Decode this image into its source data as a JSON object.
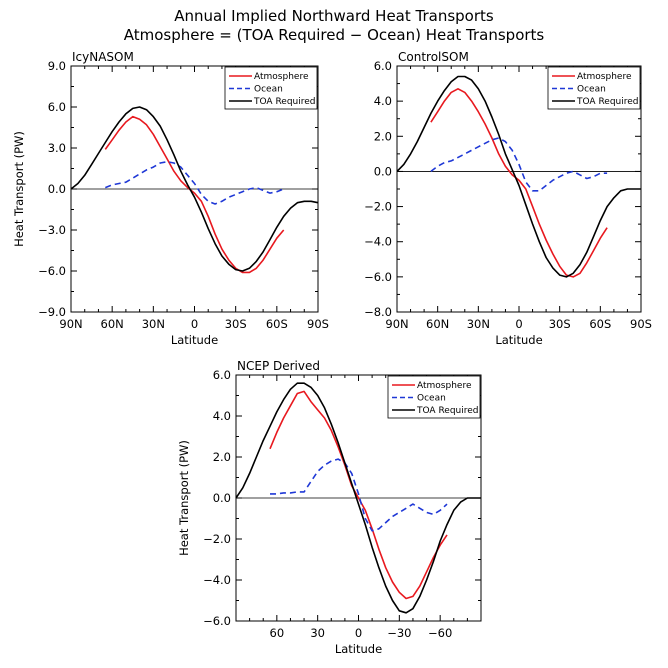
{
  "figure": {
    "title_line1": "Annual Implied Northward Heat Transports",
    "title_line2": "Atmosphere = (TOA Required − Ocean) Heat Transports"
  },
  "chart_data": [
    {
      "type": "line",
      "title": "IcyNASOM",
      "xlabel": "Latitude",
      "ylabel": "Heat Transport (PW)",
      "xlim": [
        90,
        -90
      ],
      "ylim": [
        -9,
        9
      ],
      "x_ticks": [
        90,
        60,
        30,
        0,
        -30,
        -60,
        -90
      ],
      "x_tick_labels": [
        "90N",
        "60N",
        "30N",
        "0",
        "30S",
        "60S",
        "90S"
      ],
      "y_ticks": [
        -9,
        -6,
        -3,
        0,
        3,
        6,
        9
      ],
      "y_tick_labels": [
        "−9.0",
        "−6.0",
        "−3.0",
        "0.0",
        "3.0",
        "6.0",
        "9.0"
      ],
      "legend": [
        "Atmosphere",
        "Ocean",
        "TOA Required"
      ],
      "legend_position": "top-right",
      "series": [
        {
          "name": "Atmosphere",
          "color": "#e8191f",
          "dash": "solid",
          "x": [
            65,
            60,
            55,
            50,
            45,
            40,
            35,
            30,
            25,
            20,
            15,
            10,
            5,
            0,
            -5,
            -10,
            -15,
            -20,
            -25,
            -30,
            -35,
            -40,
            -45,
            -50,
            -55,
            -60,
            -65
          ],
          "y": [
            2.9,
            3.6,
            4.3,
            4.9,
            5.3,
            5.1,
            4.7,
            4.0,
            3.1,
            2.2,
            1.3,
            0.6,
            0.1,
            -0.3,
            -0.9,
            -2.0,
            -3.3,
            -4.4,
            -5.2,
            -5.8,
            -6.1,
            -6.1,
            -5.8,
            -5.2,
            -4.4,
            -3.6,
            -3.0
          ]
        },
        {
          "name": "Ocean",
          "color": "#1f38d6",
          "dash": "dashed",
          "x": [
            65,
            60,
            55,
            50,
            45,
            40,
            35,
            30,
            25,
            20,
            15,
            10,
            5,
            0,
            -5,
            -10,
            -15,
            -20,
            -25,
            -30,
            -35,
            -40,
            -45,
            -50,
            -55,
            -60,
            -65
          ],
          "y": [
            0.1,
            0.3,
            0.4,
            0.5,
            0.8,
            1.1,
            1.4,
            1.6,
            1.9,
            2.0,
            1.9,
            1.6,
            1.0,
            0.4,
            -0.4,
            -0.9,
            -1.1,
            -0.9,
            -0.6,
            -0.4,
            -0.2,
            0.0,
            0.1,
            -0.1,
            -0.3,
            -0.2,
            0.0
          ]
        },
        {
          "name": "TOA Required",
          "color": "#000000",
          "dash": "solid",
          "x": [
            90,
            85,
            80,
            75,
            70,
            65,
            60,
            55,
            50,
            45,
            40,
            35,
            30,
            25,
            20,
            15,
            10,
            5,
            0,
            -5,
            -10,
            -15,
            -20,
            -25,
            -30,
            -35,
            -40,
            -45,
            -50,
            -55,
            -60,
            -65,
            -70,
            -75,
            -80,
            -85,
            -90
          ],
          "y": [
            0.0,
            0.4,
            1.0,
            1.8,
            2.6,
            3.4,
            4.2,
            4.9,
            5.5,
            5.9,
            6.0,
            5.8,
            5.3,
            4.6,
            3.6,
            2.5,
            1.3,
            0.3,
            -0.6,
            -1.7,
            -2.9,
            -4.0,
            -4.9,
            -5.5,
            -5.9,
            -6.0,
            -5.8,
            -5.3,
            -4.6,
            -3.7,
            -2.8,
            -2.0,
            -1.4,
            -1.0,
            -0.9,
            -0.9,
            -1.0
          ]
        }
      ]
    },
    {
      "type": "line",
      "title": "ControlSOM",
      "xlabel": "Latitude",
      "ylabel": "",
      "xlim": [
        90,
        -90
      ],
      "ylim": [
        -8,
        6
      ],
      "x_ticks": [
        90,
        60,
        30,
        0,
        -30,
        -60,
        -90
      ],
      "x_tick_labels": [
        "90N",
        "60N",
        "30N",
        "0",
        "30S",
        "60S",
        "90S"
      ],
      "y_ticks": [
        -8,
        -6,
        -4,
        -2,
        0,
        2,
        4,
        6
      ],
      "y_tick_labels": [
        "−8.0",
        "−6.0",
        "−4.0",
        "−2.0",
        "0.0",
        "2.0",
        "4.0",
        "6.0"
      ],
      "legend": [
        "Atmosphere",
        "Ocean",
        "TOA Required"
      ],
      "legend_position": "top-right",
      "series": [
        {
          "name": "Atmosphere",
          "color": "#e8191f",
          "dash": "solid",
          "x": [
            65,
            60,
            55,
            50,
            45,
            40,
            35,
            30,
            25,
            20,
            15,
            10,
            5,
            0,
            -5,
            -10,
            -15,
            -20,
            -25,
            -30,
            -35,
            -40,
            -45,
            -50,
            -55,
            -60,
            -65
          ],
          "y": [
            2.8,
            3.4,
            4.0,
            4.5,
            4.7,
            4.5,
            4.0,
            3.4,
            2.7,
            1.9,
            1.0,
            0.3,
            -0.2,
            -0.5,
            -1.0,
            -2.0,
            -3.0,
            -3.9,
            -4.7,
            -5.4,
            -5.9,
            -6.0,
            -5.8,
            -5.2,
            -4.5,
            -3.8,
            -3.2
          ]
        },
        {
          "name": "Ocean",
          "color": "#1f38d6",
          "dash": "dashed",
          "x": [
            65,
            60,
            55,
            50,
            45,
            40,
            35,
            30,
            25,
            20,
            15,
            10,
            5,
            0,
            -5,
            -10,
            -15,
            -20,
            -25,
            -30,
            -35,
            -40,
            -45,
            -50,
            -55,
            -60,
            -65
          ],
          "y": [
            0.0,
            0.3,
            0.5,
            0.6,
            0.8,
            1.0,
            1.2,
            1.4,
            1.6,
            1.8,
            1.9,
            1.7,
            1.2,
            0.4,
            -0.6,
            -1.1,
            -1.1,
            -0.8,
            -0.5,
            -0.3,
            -0.1,
            0.0,
            -0.2,
            -0.4,
            -0.3,
            -0.1,
            -0.1
          ]
        },
        {
          "name": "TOA Required",
          "color": "#000000",
          "dash": "solid",
          "x": [
            90,
            85,
            80,
            75,
            70,
            65,
            60,
            55,
            50,
            45,
            40,
            35,
            30,
            25,
            20,
            15,
            10,
            5,
            0,
            -5,
            -10,
            -15,
            -20,
            -25,
            -30,
            -35,
            -40,
            -45,
            -50,
            -55,
            -60,
            -65,
            -70,
            -75,
            -80,
            -85,
            -90
          ],
          "y": [
            0.0,
            0.4,
            1.0,
            1.7,
            2.5,
            3.3,
            4.0,
            4.6,
            5.1,
            5.4,
            5.4,
            5.2,
            4.7,
            4.0,
            3.1,
            2.1,
            1.0,
            0.1,
            -0.8,
            -1.9,
            -3.0,
            -4.0,
            -4.9,
            -5.5,
            -5.9,
            -6.0,
            -5.8,
            -5.3,
            -4.6,
            -3.7,
            -2.8,
            -2.0,
            -1.5,
            -1.1,
            -1.0,
            -1.0,
            -1.0
          ]
        }
      ]
    },
    {
      "type": "line",
      "title": "NCEP Derived",
      "xlabel": "Latitude",
      "ylabel": "Heat Transport (PW)",
      "xlim": [
        90,
        -90
      ],
      "ylim": [
        -6,
        6
      ],
      "x_ticks": [
        60,
        30,
        0,
        -30,
        -60
      ],
      "x_tick_labels": [
        "60",
        "30",
        "0",
        "−30",
        "−60"
      ],
      "y_ticks": [
        -6,
        -4,
        -2,
        0,
        2,
        4,
        6
      ],
      "y_tick_labels": [
        "−6.0",
        "−4.0",
        "−2.0",
        "0.0",
        "2.0",
        "4.0",
        "6.0"
      ],
      "legend": [
        "Atmosphere",
        "Ocean",
        "TOA Required"
      ],
      "legend_position": "top-right",
      "series": [
        {
          "name": "Atmosphere",
          "color": "#e8191f",
          "dash": "solid",
          "x": [
            65,
            60,
            55,
            50,
            45,
            40,
            35,
            30,
            25,
            20,
            15,
            10,
            5,
            0,
            -5,
            -10,
            -15,
            -20,
            -25,
            -30,
            -35,
            -40,
            -45,
            -50,
            -55,
            -60,
            -65
          ],
          "y": [
            2.4,
            3.2,
            3.9,
            4.5,
            5.1,
            5.2,
            4.7,
            4.3,
            3.9,
            3.3,
            2.5,
            1.6,
            0.6,
            0.0,
            -0.6,
            -1.5,
            -2.5,
            -3.4,
            -4.1,
            -4.6,
            -4.9,
            -4.8,
            -4.3,
            -3.6,
            -2.9,
            -2.3,
            -1.8
          ]
        },
        {
          "name": "Ocean",
          "color": "#1f38d6",
          "dash": "dashed",
          "x": [
            65,
            60,
            55,
            50,
            45,
            40,
            35,
            30,
            25,
            20,
            15,
            10,
            5,
            0,
            -5,
            -10,
            -15,
            -20,
            -25,
            -30,
            -35,
            -40,
            -45,
            -50,
            -55,
            -60,
            -65
          ],
          "y": [
            0.2,
            0.2,
            0.25,
            0.25,
            0.3,
            0.3,
            0.8,
            1.3,
            1.6,
            1.8,
            1.9,
            1.7,
            1.2,
            0.2,
            -1.0,
            -1.6,
            -1.5,
            -1.2,
            -0.9,
            -0.7,
            -0.5,
            -0.3,
            -0.5,
            -0.7,
            -0.8,
            -0.6,
            -0.3
          ]
        },
        {
          "name": "TOA Required",
          "color": "#000000",
          "dash": "solid",
          "x": [
            90,
            85,
            80,
            75,
            70,
            65,
            60,
            55,
            50,
            45,
            40,
            35,
            30,
            25,
            20,
            15,
            10,
            5,
            0,
            -5,
            -10,
            -15,
            -20,
            -25,
            -30,
            -35,
            -40,
            -45,
            -50,
            -55,
            -60,
            -65,
            -70,
            -75,
            -80,
            -85,
            -90
          ],
          "y": [
            0.0,
            0.5,
            1.2,
            2.0,
            2.8,
            3.5,
            4.2,
            4.8,
            5.3,
            5.6,
            5.6,
            5.4,
            5.0,
            4.4,
            3.6,
            2.7,
            1.7,
            0.7,
            -0.3,
            -1.3,
            -2.4,
            -3.4,
            -4.3,
            -5.0,
            -5.5,
            -5.6,
            -5.4,
            -4.8,
            -4.0,
            -3.1,
            -2.1,
            -1.3,
            -0.6,
            -0.2,
            0.0,
            0.0,
            0.0
          ]
        }
      ]
    }
  ]
}
